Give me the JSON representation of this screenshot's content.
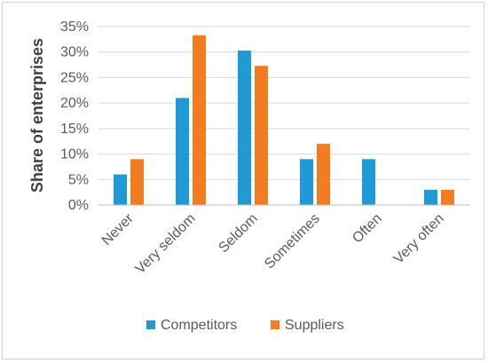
{
  "chart_data": {
    "type": "bar",
    "title": "",
    "xlabel": "",
    "ylabel": "Share of enterprises",
    "categories": [
      "Never",
      "Very seldom",
      "Seldom",
      "Sometimes",
      "Often",
      "Very often"
    ],
    "series": [
      {
        "name": "Competitors",
        "color": "#1f9ad6",
        "values": [
          6,
          21,
          30.3,
          9,
          9,
          3
        ]
      },
      {
        "name": "Suppliers",
        "color": "#f47c20",
        "values": [
          9,
          33.3,
          27.3,
          12,
          0,
          3
        ]
      }
    ],
    "ylim": [
      0,
      35
    ],
    "yticks": [
      "0%",
      "5%",
      "10%",
      "15%",
      "20%",
      "25%",
      "30%",
      "35%"
    ],
    "ytick_values": [
      0,
      5,
      10,
      15,
      20,
      25,
      30,
      35
    ],
    "grid": true,
    "legend_position": "bottom",
    "colors": {
      "grid": "#d9d9d9",
      "axis": "#bfbfbf"
    }
  }
}
